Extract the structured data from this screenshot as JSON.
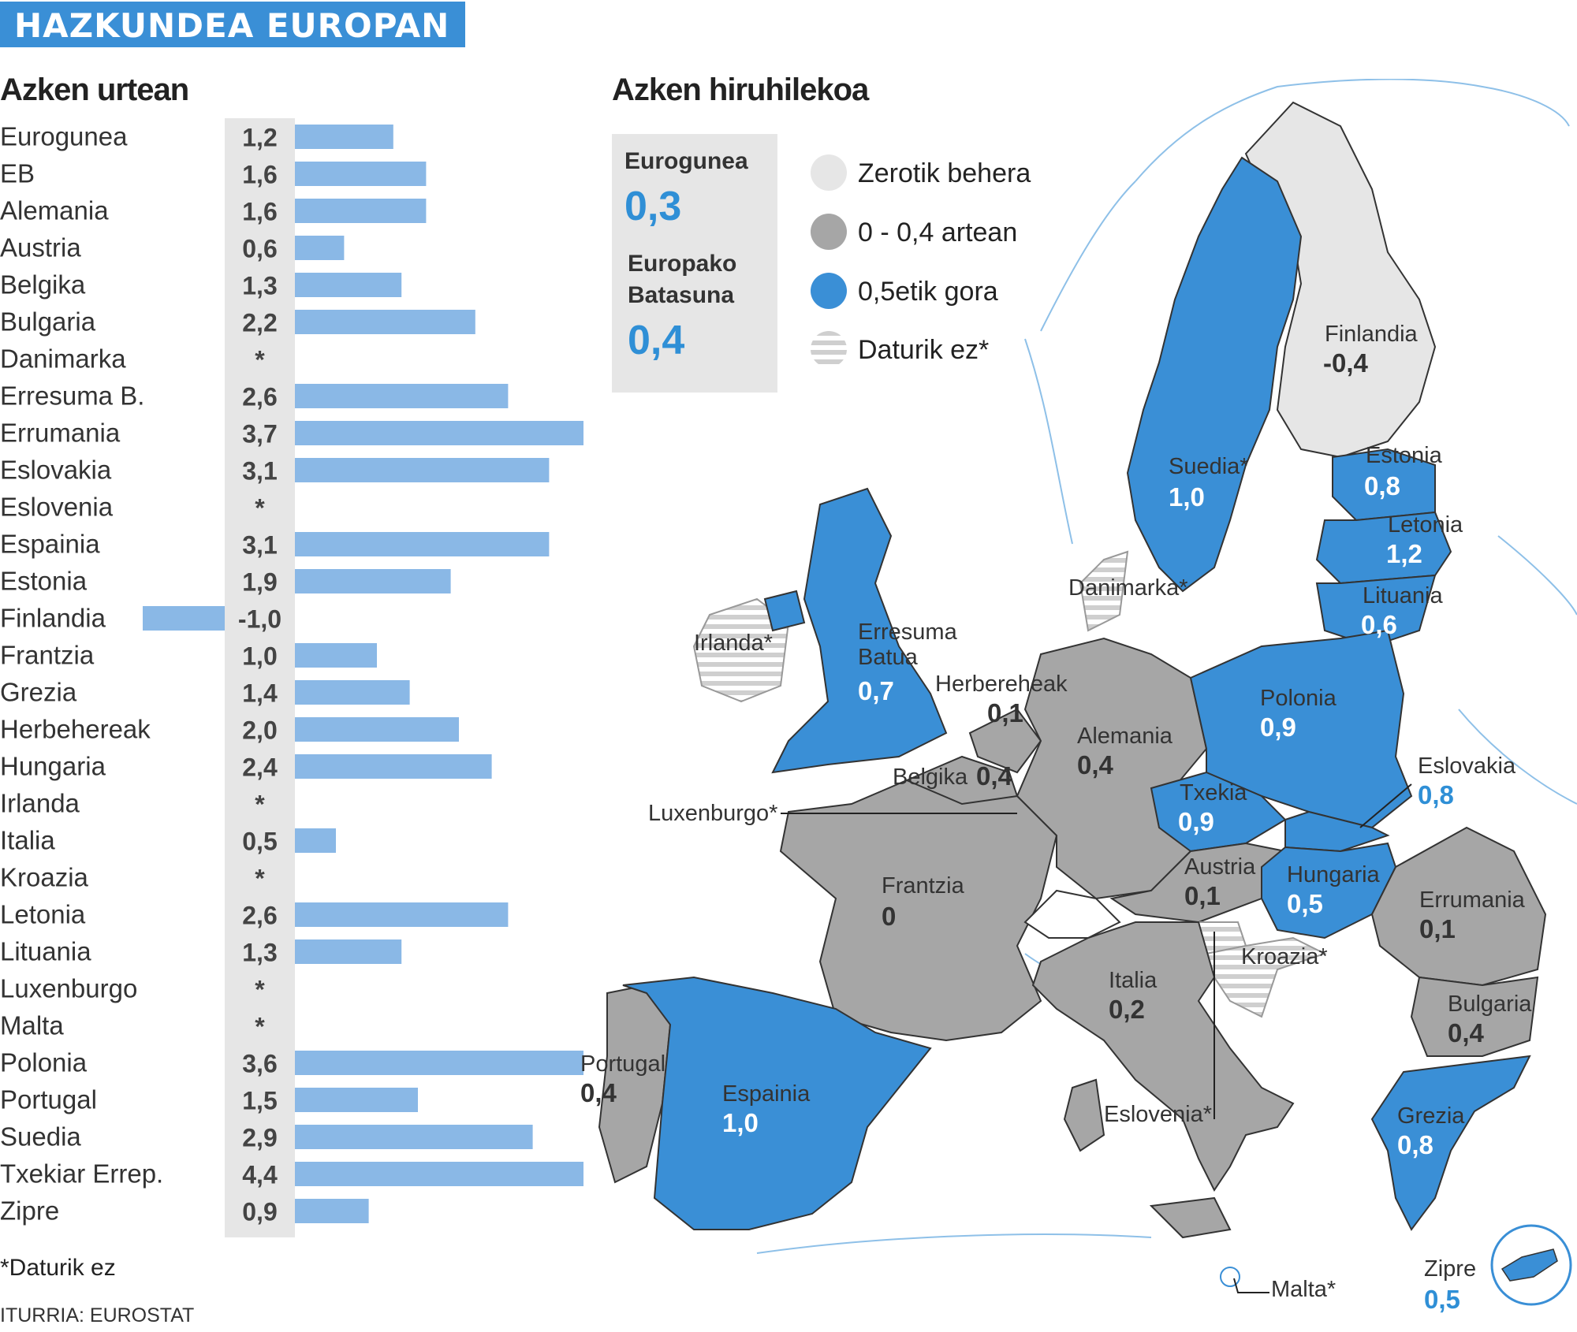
{
  "header": {
    "title": "HAZKUNDEA EUROPAN"
  },
  "left_title": "Azken urtean",
  "right_title": "Azken hiruhilekoa",
  "footnote": "*Daturik ez",
  "source": "ITURRIA: EUROSTAT",
  "summary": {
    "eurozone_label": "Eurogunea",
    "eurozone_value": "0,3",
    "eu_label_line1": "Europako",
    "eu_label_line2": "Batasuna",
    "eu_value": "0,4"
  },
  "legend": [
    {
      "label": "Zerotik behera",
      "color": "#e6e6e6"
    },
    {
      "label": "0 - 0,4 artean",
      "color": "#a6a6a6"
    },
    {
      "label": "0,5etik gora",
      "color": "#3a8fd6"
    },
    {
      "label": "Daturik ez*",
      "color": "striped"
    }
  ],
  "colors": {
    "bar": "#8ab8e6",
    "bar_band": "#e6e6e6",
    "accent": "#3a8fd6",
    "gray": "#a6a6a6"
  },
  "chart_data": [
    {
      "type": "bar",
      "orientation": "horizontal",
      "title": "Azken urtean",
      "categories": [
        "Eurogunea",
        "EB",
        "Alemania",
        "Austria",
        "Belgika",
        "Bulgaria",
        "Danimarka",
        "Erresuma B.",
        "Errumania",
        "Eslovakia",
        "Eslovenia",
        "Espainia",
        "Estonia",
        "Finlandia",
        "Frantzia",
        "Grezia",
        "Herbehereak",
        "Hungaria",
        "Irlanda",
        "Italia",
        "Kroazia",
        "Letonia",
        "Lituania",
        "Luxenburgo",
        "Malta",
        "Polonia",
        "Portugal",
        "Suedia",
        "Txekiar Errep.",
        "Zipre"
      ],
      "values": [
        1.2,
        1.6,
        1.6,
        0.6,
        1.3,
        2.2,
        null,
        2.6,
        3.7,
        3.1,
        null,
        3.1,
        1.9,
        -1.0,
        1.0,
        1.4,
        2.0,
        2.4,
        null,
        0.5,
        null,
        2.6,
        1.3,
        null,
        null,
        3.6,
        1.5,
        2.9,
        4.4,
        0.9
      ],
      "labels": [
        "1,2",
        "1,6",
        "1,6",
        "0,6",
        "1,3",
        "2,2",
        "*",
        "2,6",
        "3,7",
        "3,1",
        "*",
        "3,1",
        "1,9",
        "-1,0",
        "1,0",
        "1,4",
        "2,0",
        "2,4",
        "*",
        "0,5",
        "*",
        "2,6",
        "1,3",
        "*",
        "*",
        "3,6",
        "1,5",
        "2,9",
        "4,4",
        "0,9"
      ]
    },
    {
      "type": "choropleth-map",
      "title": "Azken hiruhilekoa",
      "regions": [
        {
          "name": "Finlandia",
          "value": "-0,4",
          "class": "below-zero"
        },
        {
          "name": "Suedia*",
          "value": "1,0",
          "class": "above-0.5"
        },
        {
          "name": "Estonia",
          "value": "0,8",
          "class": "above-0.5"
        },
        {
          "name": "Letonia",
          "value": "1,2",
          "class": "above-0.5"
        },
        {
          "name": "Lituania",
          "value": "0,6",
          "class": "above-0.5"
        },
        {
          "name": "Danimarka*",
          "value": "",
          "class": "no-data"
        },
        {
          "name": "Irlanda*",
          "value": "",
          "class": "no-data"
        },
        {
          "name_line1": "Erresuma",
          "name": "Batua",
          "value": "0,7",
          "class": "above-0.5"
        },
        {
          "name": "Herbereheak",
          "value": "0,1",
          "class": "0-0.4"
        },
        {
          "name": "Alemania",
          "value": "0,4",
          "class": "0-0.4"
        },
        {
          "name": "Polonia",
          "value": "0,9",
          "class": "above-0.5"
        },
        {
          "name": "Belgika",
          "value": "0,4",
          "class": "0-0.4"
        },
        {
          "name": "Luxenburgo*",
          "value": "",
          "class": "no-data"
        },
        {
          "name": "Txekia",
          "value": "0,9",
          "class": "above-0.5"
        },
        {
          "name": "Eslovakia",
          "value": "0,8",
          "class": "above-0.5"
        },
        {
          "name": "Austria",
          "value": "0,1",
          "class": "0-0.4"
        },
        {
          "name": "Hungaria",
          "value": "0,5",
          "class": "above-0.5"
        },
        {
          "name": "Frantzia",
          "value": "0",
          "class": "0-0.4"
        },
        {
          "name": "Errumania",
          "value": "0,1",
          "class": "0-0.4"
        },
        {
          "name": "Kroazia*",
          "value": "",
          "class": "no-data"
        },
        {
          "name": "Italia",
          "value": "0,2",
          "class": "0-0.4"
        },
        {
          "name": "Bulgaria",
          "value": "0,4",
          "class": "0-0.4"
        },
        {
          "name": "Portugal",
          "value": "0,4",
          "class": "0-0.4"
        },
        {
          "name": "Espainia",
          "value": "1,0",
          "class": "above-0.5"
        },
        {
          "name": "Eslovenia*",
          "value": "",
          "class": "no-data"
        },
        {
          "name": "Grezia",
          "value": "0,8",
          "class": "above-0.5"
        },
        {
          "name": "Malta*",
          "value": "",
          "class": "no-data"
        },
        {
          "name": "Zipre",
          "value": "0,5",
          "class": "above-0.5"
        }
      ]
    }
  ]
}
